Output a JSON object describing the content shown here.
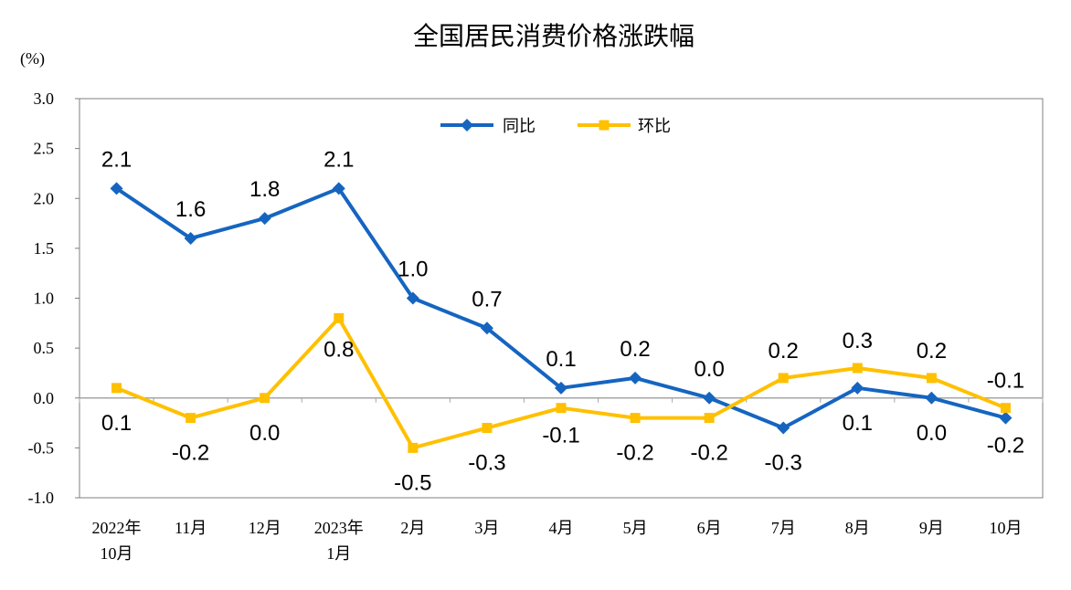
{
  "chart_data": {
    "type": "line",
    "title": "全国居民消费价格涨跌幅",
    "unit_label": "(%)",
    "categories": [
      [
        "2022年",
        "10月"
      ],
      [
        "11月"
      ],
      [
        "12月"
      ],
      [
        "2023年",
        "1月"
      ],
      [
        "2月"
      ],
      [
        "3月"
      ],
      [
        "4月"
      ],
      [
        "5月"
      ],
      [
        "6月"
      ],
      [
        "7月"
      ],
      [
        "8月"
      ],
      [
        "9月"
      ],
      [
        "10月"
      ]
    ],
    "ylim": [
      -1.0,
      3.0
    ],
    "yticks": [
      "3.0",
      "2.5",
      "2.0",
      "1.5",
      "1.0",
      "0.5",
      "0.0",
      "-0.5",
      "-1.0"
    ],
    "ytick_values": [
      3.0,
      2.5,
      2.0,
      1.5,
      1.0,
      0.5,
      0.0,
      -0.5,
      -1.0
    ],
    "series": [
      {
        "name": "同比",
        "color": "#1565C0",
        "marker": "diamond",
        "values": [
          2.1,
          1.6,
          1.8,
          2.1,
          1.0,
          0.7,
          0.1,
          0.2,
          0.0,
          -0.3,
          0.1,
          0.0,
          -0.2
        ],
        "labels": [
          "2.1",
          "1.6",
          "1.8",
          "2.1",
          "1.0",
          "0.7",
          "0.1",
          "0.2",
          "0.0",
          "-0.3",
          "0.1",
          "0.0",
          "-0.2"
        ]
      },
      {
        "name": "环比",
        "color": "#FFC000",
        "marker": "square",
        "values": [
          0.1,
          -0.2,
          0.0,
          0.8,
          -0.5,
          -0.3,
          -0.1,
          -0.2,
          -0.2,
          0.2,
          0.3,
          0.2,
          -0.1
        ],
        "labels": [
          "0.1",
          "-0.2",
          "0.0",
          "0.8",
          "-0.5",
          "-0.3",
          "-0.1",
          "-0.2",
          "-0.2",
          "0.2",
          "0.3",
          "0.2",
          "-0.1"
        ]
      }
    ],
    "legend_position": "top-center",
    "grid": false
  }
}
